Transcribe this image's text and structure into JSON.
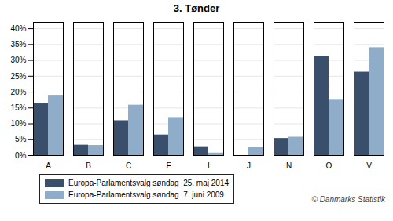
{
  "chart_data": {
    "type": "bar",
    "title": "3. Tønder",
    "categories": [
      "A",
      "B",
      "C",
      "F",
      "I",
      "J",
      "N",
      "O",
      "V"
    ],
    "series": [
      {
        "name": "Europa-Parlamentsvalg søndag  25. maj 2014",
        "color": "#3a4f6b",
        "values": [
          16.3,
          3.3,
          11.0,
          6.5,
          2.8,
          0.0,
          5.4,
          31.2,
          26.3
        ]
      },
      {
        "name": "Europa-Parlamentsvalg søndag  7. juni 2009",
        "color": "#8facc8",
        "values": [
          19.0,
          3.2,
          15.9,
          12.0,
          0.8,
          2.5,
          5.8,
          17.7,
          34.0
        ]
      }
    ],
    "ylim": [
      0,
      42
    ],
    "yticks": [
      {
        "value": 0,
        "label": "0%"
      },
      {
        "value": 5,
        "label": "5%"
      },
      {
        "value": 10,
        "label": "10%"
      },
      {
        "value": 15,
        "label": "15%"
      },
      {
        "value": 20,
        "label": "20%"
      },
      {
        "value": 25,
        "label": "25%"
      },
      {
        "value": 30,
        "label": "30%"
      },
      {
        "value": 35,
        "label": "35%"
      },
      {
        "value": 40,
        "label": "40%"
      }
    ],
    "grid": true,
    "legend": "bottom",
    "annotations": [
      "© Danmarks Statistik"
    ]
  }
}
